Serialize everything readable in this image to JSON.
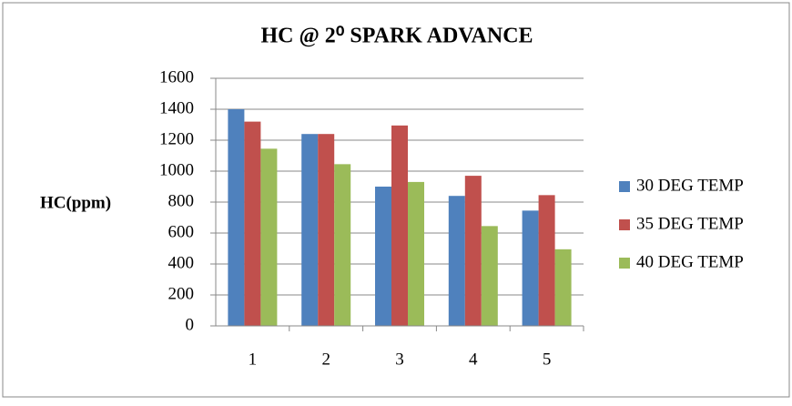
{
  "chart_data": {
    "type": "bar",
    "title": "HC @ 2⁰ SPARK ADVANCE",
    "y_label": "HC(ppm)",
    "categories": [
      "1",
      "2",
      "3",
      "4",
      "5"
    ],
    "series": [
      {
        "name": "30 DEG TEMP",
        "color": "#4f81bd",
        "values": [
          1400,
          1240,
          900,
          840,
          745
        ]
      },
      {
        "name": "35 DEG TEMP",
        "color": "#c0504d",
        "values": [
          1320,
          1240,
          1295,
          970,
          845
        ]
      },
      {
        "name": "40 DEG TEMP",
        "color": "#9bbb59",
        "values": [
          1145,
          1045,
          930,
          645,
          495
        ]
      }
    ],
    "ylim": [
      0,
      1600
    ],
    "yticks": [
      0,
      200,
      400,
      600,
      800,
      1000,
      1200,
      1400,
      1600
    ],
    "grid": true,
    "legend": "right"
  }
}
